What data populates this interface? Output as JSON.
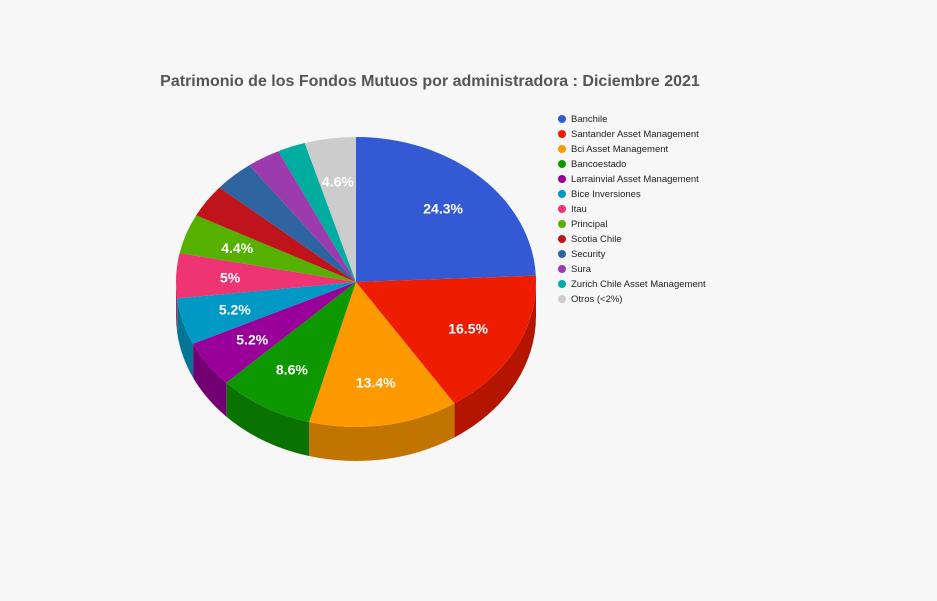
{
  "chart_data": {
    "type": "pie",
    "title": "Patrimonio de los Fondos Mutuos por administradora : Diciembre 2021",
    "legend_position": "right",
    "slices": [
      {
        "name": "Banchile",
        "value": 24.3,
        "label": "24.3%",
        "color": "#3359d4",
        "side_color": "#2a47aa"
      },
      {
        "name": "Santander Asset Management",
        "value": 16.5,
        "label": "16.5%",
        "color": "#ee1c00",
        "side_color": "#b41500"
      },
      {
        "name": "Bci Asset Management",
        "value": 13.4,
        "label": "13.4%",
        "color": "#ff9900",
        "side_color": "#c27400"
      },
      {
        "name": "Bancoestado",
        "value": 8.6,
        "label": "8.6%",
        "color": "#0d9800",
        "side_color": "#0a7300"
      },
      {
        "name": "Larrainvial Asset Management",
        "value": 5.2,
        "label": "5.2%",
        "color": "#990099",
        "side_color": "#730073"
      },
      {
        "name": "Bice Inversiones",
        "value": 5.2,
        "label": "5.2%",
        "color": "#0099c6",
        "side_color": "#007596"
      },
      {
        "name": "Itau",
        "value": 5.0,
        "label": "5%",
        "color": "#ee3473",
        "side_color": "#b52858"
      },
      {
        "name": "Principal",
        "value": 4.4,
        "label": "4.4%",
        "color": "#55b000",
        "side_color": "#408500"
      },
      {
        "name": "Scotia Chile",
        "value": 3.7,
        "label": "",
        "color": "#c0141d",
        "side_color": "#920f16"
      },
      {
        "name": "Security",
        "value": 3.6,
        "label": "",
        "color": "#2e64a0",
        "side_color": "#234c79"
      },
      {
        "name": "Sura",
        "value": 3.0,
        "label": "",
        "color": "#9c3bae",
        "side_color": "#762d84"
      },
      {
        "name": "Zurich Chile Asset Management",
        "value": 2.5,
        "label": "",
        "color": "#00ad9f",
        "side_color": "#008378"
      },
      {
        "name": "Otros (<2%)",
        "value": 4.6,
        "label": "4.6%",
        "color": "#cccccc",
        "side_color": "#a3a3a3"
      }
    ]
  }
}
